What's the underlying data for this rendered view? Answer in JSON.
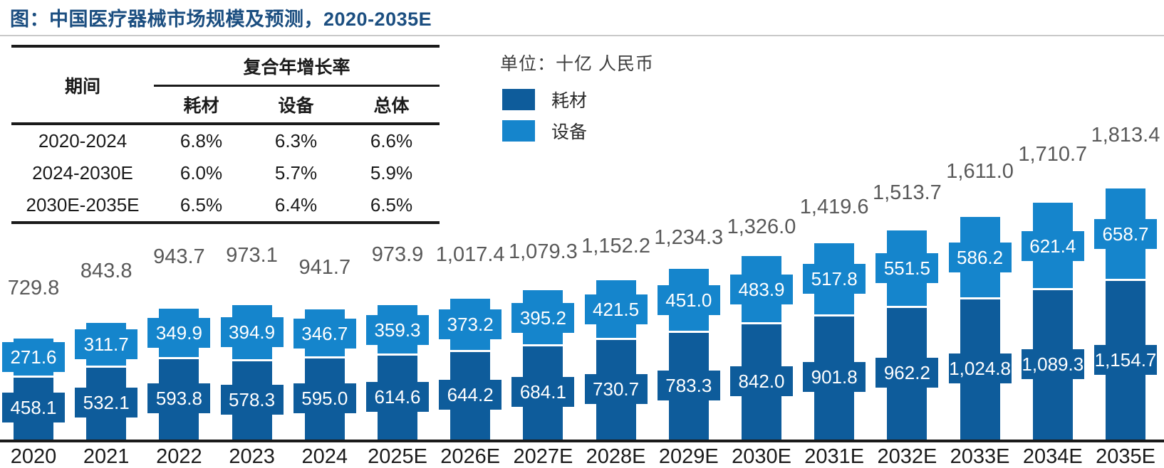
{
  "title": "图：中国医疗器械市场规模及预测，2020-2035E",
  "unit_label": "单位：十亿 人民币",
  "legend": {
    "items": [
      {
        "label": "耗材",
        "color": "#0E5C9B"
      },
      {
        "label": "设备",
        "color": "#1585CC"
      }
    ]
  },
  "cagr_table": {
    "period_header": "期间",
    "group_header": "复合年增长率",
    "columns": [
      "耗材",
      "设备",
      "总体"
    ],
    "rows": [
      {
        "period": "2020-2024",
        "values": [
          "6.8%",
          "6.3%",
          "6.6%"
        ]
      },
      {
        "period": "2024-2030E",
        "values": [
          "6.0%",
          "5.7%",
          "5.9%"
        ]
      },
      {
        "period": "2030E-2035E",
        "values": [
          "6.5%",
          "6.4%",
          "6.5%"
        ]
      }
    ]
  },
  "chart_data": {
    "type": "bar",
    "stacked": true,
    "title": "中国医疗器械市场规模及预测, 2020-2035E",
    "unit": "十亿 人民币",
    "categories": [
      "2020",
      "2021",
      "2022",
      "2023",
      "2024",
      "2025E",
      "2026E",
      "2027E",
      "2028E",
      "2029E",
      "2030E",
      "2031E",
      "2032E",
      "2033E",
      "2034E",
      "2035E"
    ],
    "series": [
      {
        "name": "耗材",
        "color": "#0E5C9B",
        "values": [
          458.1,
          532.1,
          593.8,
          578.3,
          595.0,
          614.6,
          644.2,
          684.1,
          730.7,
          783.3,
          842.0,
          901.8,
          962.2,
          1024.8,
          1089.3,
          1154.7
        ]
      },
      {
        "name": "设备",
        "color": "#1585CC",
        "values": [
          271.6,
          311.7,
          349.9,
          394.9,
          346.7,
          359.3,
          373.2,
          395.2,
          421.5,
          451.0,
          483.9,
          517.8,
          551.5,
          586.2,
          621.4,
          658.7
        ]
      }
    ],
    "totals": [
      729.8,
      843.8,
      943.7,
      973.1,
      941.7,
      973.9,
      1017.4,
      1079.3,
      1152.2,
      1234.3,
      1326.0,
      1419.6,
      1513.7,
      1611.0,
      1710.7,
      1813.4
    ],
    "ylim": [
      0,
      1900
    ],
    "grid": false,
    "axis_ticks": "none",
    "legend_position": "top-left",
    "value_labels": "white text in wide colored boxes on each segment",
    "total_labels": "gray labels above each bar"
  },
  "colors": {
    "title": "#1B4E80",
    "total_label": "#595959",
    "axis": "#1A1A1A",
    "segment_separator": "#FFFFFF",
    "title_divider": "#C9C9C9"
  }
}
